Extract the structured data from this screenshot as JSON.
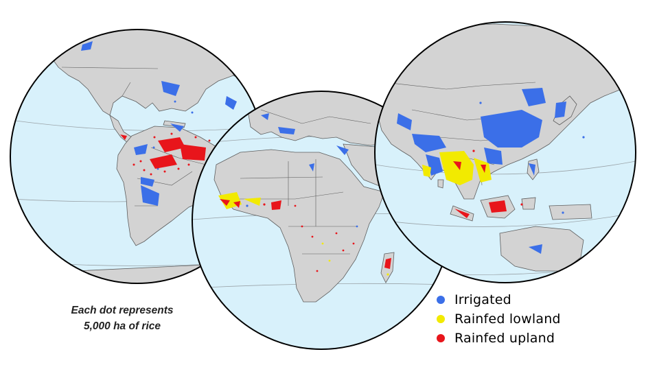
{
  "caption": {
    "line1": "Each dot represents",
    "line2": "5,000 ha of rice"
  },
  "legend": [
    {
      "label": "Irrigated",
      "color": "#3b6fe8"
    },
    {
      "label": "Rainfed lowland",
      "color": "#f2ea00"
    },
    {
      "label": "Rainfed upland",
      "color": "#e8151b"
    }
  ],
  "colors": {
    "ocean": "#d8f1fb",
    "land": "#d3d3d3",
    "border": "#5c5c5c",
    "globe_outline": "#000000",
    "graticule": "#9aa3a8"
  },
  "globes": [
    "globe-americas",
    "globe-africa-europe",
    "globe-asia-oceania"
  ]
}
